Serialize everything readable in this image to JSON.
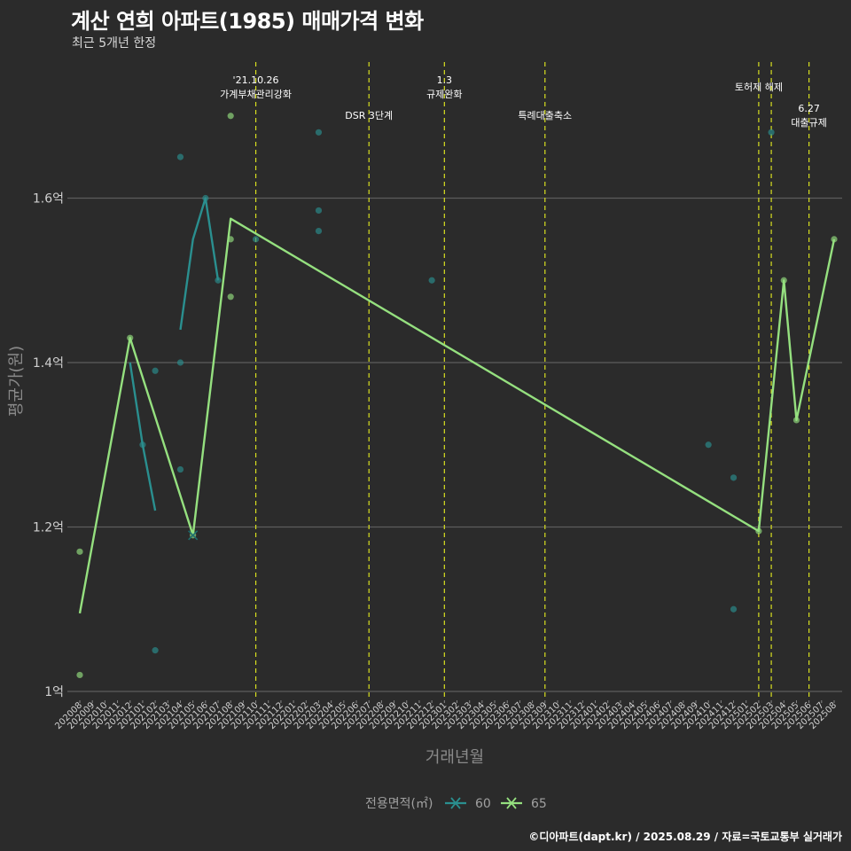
{
  "header": {
    "title": "계산 연희 아파트(1985) 매매가격 변화",
    "subtitle": "최근 5개년 한정"
  },
  "caption": "©디아파트(dapt.kr) / 2025.08.29 / 자료=국토교통부 실거래가",
  "chart_data": {
    "type": "line",
    "xlabel": "거래년월",
    "ylabel": "평균가(원)",
    "ylim": [
      0.98,
      1.74
    ],
    "y_ticks": [
      1.0,
      1.2,
      1.4,
      1.6
    ],
    "y_tick_labels": [
      "1억",
      "1.2억",
      "1.4억",
      "1.6억"
    ],
    "x_months": [
      "202008",
      "202009",
      "202010",
      "202011",
      "202012",
      "202101",
      "202102",
      "202103",
      "202104",
      "202105",
      "202106",
      "202107",
      "202108",
      "202109",
      "202110",
      "202111",
      "202112",
      "202201",
      "202202",
      "202203",
      "202204",
      "202205",
      "202206",
      "202207",
      "202208",
      "202209",
      "202210",
      "202211",
      "202212",
      "202301",
      "202302",
      "202303",
      "202304",
      "202305",
      "202306",
      "202307",
      "202308",
      "202309",
      "202310",
      "202311",
      "202312",
      "202401",
      "202402",
      "202403",
      "202404",
      "202405",
      "202406",
      "202407",
      "202408",
      "202409",
      "202410",
      "202411",
      "202412",
      "202501",
      "202502",
      "202503",
      "202504",
      "202505",
      "202506",
      "202507",
      "202508"
    ],
    "legend_title": "전용면적(㎡)",
    "legend_position": "bottom",
    "grid": true,
    "colors": {
      "series_60": "#2a8f8f",
      "series_65": "#95e07f",
      "event_line": "#d8e020",
      "grid": "#5c5c5c"
    },
    "series": [
      {
        "name": "60",
        "lines": [
          [
            [
              "202012",
              1.4
            ],
            [
              "202101",
              1.3
            ],
            [
              "202102",
              1.22
            ]
          ],
          [
            [
              "202104",
              1.44
            ],
            [
              "202105",
              1.55
            ],
            [
              "202106",
              1.6
            ],
            [
              "202107",
              1.5
            ]
          ]
        ],
        "points": [
          [
            "202102",
            1.05
          ],
          [
            "202102",
            1.39
          ],
          [
            "202101",
            1.3
          ],
          [
            "202104",
            1.65
          ],
          [
            "202104",
            1.4
          ],
          [
            "202104",
            1.27
          ],
          [
            "202106",
            1.6
          ],
          [
            "202107",
            1.5
          ],
          [
            "202110",
            1.55
          ],
          [
            "202203",
            1.68
          ],
          [
            "202203",
            1.585
          ],
          [
            "202203",
            1.56
          ],
          [
            "202212",
            1.5
          ],
          [
            "202410",
            1.3
          ],
          [
            "202412",
            1.26
          ],
          [
            "202412",
            1.1
          ],
          [
            "202503",
            1.68
          ]
        ]
      },
      {
        "name": "65",
        "lines": [
          [
            [
              "202008",
              1.095
            ],
            [
              "202012",
              1.43
            ],
            [
              "202105",
              1.19
            ],
            [
              "202108",
              1.575
            ],
            [
              "202502",
              1.195
            ],
            [
              "202504",
              1.5
            ],
            [
              "202505",
              1.33
            ],
            [
              "202508",
              1.55
            ]
          ]
        ],
        "points": [
          [
            "202008",
            1.17
          ],
          [
            "202008",
            1.02
          ],
          [
            "202012",
            1.43
          ],
          [
            "202105",
            1.19
          ],
          [
            "202108",
            1.7
          ],
          [
            "202108",
            1.55
          ],
          [
            "202108",
            1.48
          ],
          [
            "202502",
            1.195
          ],
          [
            "202504",
            1.5
          ],
          [
            "202505",
            1.33
          ],
          [
            "202508",
            1.55
          ]
        ]
      }
    ],
    "events": [
      {
        "x": "202110",
        "label": [
          "'21.10.26",
          "가계부채관리강화"
        ]
      },
      {
        "x": "202207",
        "label": [
          "DSR 3단계"
        ]
      },
      {
        "x": "202301",
        "label": [
          "1.3",
          "규제완화"
        ]
      },
      {
        "x": "202309",
        "label": [
          "특례대출축소"
        ]
      },
      {
        "x": "202502",
        "label": [
          "토허제 해제"
        ]
      },
      {
        "x": "202503",
        "label": []
      },
      {
        "x": "202506",
        "label": [
          "6.27",
          "대출규제"
        ]
      }
    ]
  }
}
